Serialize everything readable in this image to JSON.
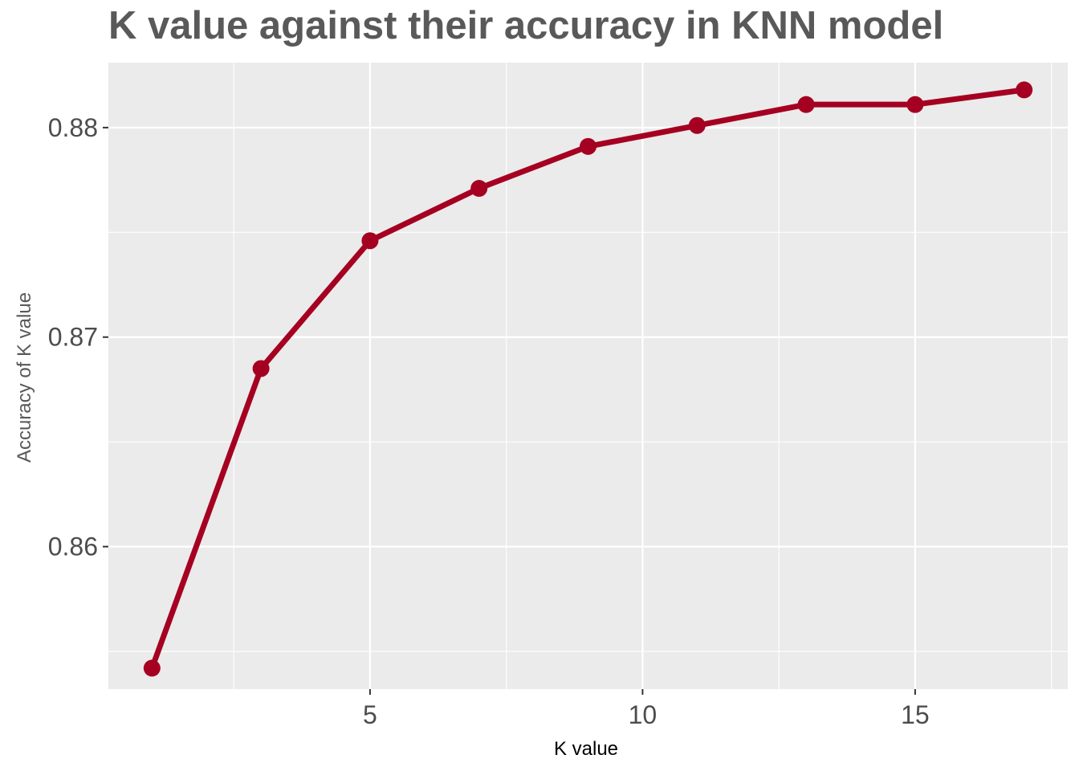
{
  "chart_data": {
    "type": "line",
    "title": "K value against their accuracy in KNN model",
    "xlabel": "K value",
    "ylabel": "Accuracy of K value",
    "xlim": [
      0.2,
      17.8
    ],
    "ylim": [
      0.8532,
      0.8831
    ],
    "x_ticks": [
      5,
      10,
      15
    ],
    "x_minor_ticks": [
      2.5,
      7.5,
      12.5,
      17.5
    ],
    "y_ticks": [
      0.86,
      0.87,
      0.88
    ],
    "y_minor_ticks": [
      0.855,
      0.865,
      0.875
    ],
    "grid": true,
    "series": [
      {
        "x": [
          1,
          3,
          5,
          7,
          9,
          11,
          13,
          15,
          17
        ],
        "values": [
          0.8542,
          0.8685,
          0.8746,
          0.8771,
          0.8791,
          0.8801,
          0.8811,
          0.8811,
          0.8818
        ],
        "color": "#a50021"
      }
    ],
    "colors": {
      "panel": "#ebebeb",
      "grid": "#ffffff",
      "title": "#595959",
      "tick_text": "#4d4d4d",
      "axis_title_x": "#000000",
      "axis_title_y": "#595959"
    }
  }
}
